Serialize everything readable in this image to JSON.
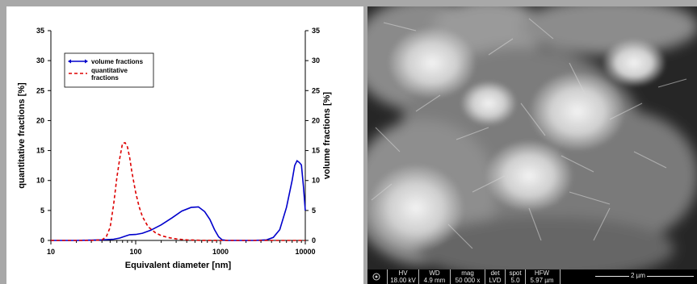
{
  "chart_data": {
    "type": "line",
    "xlabel": "Equivalent diameter [nm]",
    "ylabel_left": "quantitative fractions [%]",
    "ylabel_right": "volume fractions [%]",
    "x_scale": "log",
    "xlim": [
      10,
      10000
    ],
    "ylim": [
      0,
      35
    ],
    "y2lim": [
      0,
      35
    ],
    "x_ticks": [
      "10",
      "100",
      "1000",
      "10000"
    ],
    "y_ticks": [
      "0",
      "5",
      "10",
      "15",
      "20",
      "25",
      "30",
      "35"
    ],
    "y2_ticks": [
      "0",
      "5",
      "10",
      "15",
      "20",
      "25",
      "30",
      "35"
    ],
    "grid": false,
    "legend": "top-left",
    "series": [
      {
        "name": "volume fractions",
        "color": "#0000cc",
        "style": "solid",
        "axis": "right",
        "x": [
          10,
          20,
          40,
          55,
          65,
          75,
          85,
          100,
          120,
          150,
          200,
          270,
          350,
          450,
          550,
          650,
          750,
          850,
          950,
          1050,
          1200,
          1500,
          2500,
          3500,
          4200,
          5000,
          6000,
          7000,
          7500,
          8000,
          8500,
          9000,
          9500,
          10000
        ],
        "y": [
          0,
          0,
          0.1,
          0.2,
          0.4,
          0.7,
          0.95,
          1.0,
          1.2,
          1.7,
          2.6,
          3.8,
          4.9,
          5.5,
          5.6,
          4.8,
          3.5,
          1.8,
          0.6,
          0.1,
          0,
          0,
          0,
          0.1,
          0.5,
          1.8,
          5.5,
          10.0,
          12.5,
          13.3,
          13.0,
          12.6,
          9.0,
          5.0
        ]
      },
      {
        "name": "quantitative fractions",
        "color": "#dd0000",
        "style": "dashed",
        "axis": "left",
        "x": [
          10,
          30,
          40,
          45,
          50,
          55,
          60,
          65,
          70,
          75,
          80,
          85,
          90,
          100,
          110,
          120,
          140,
          170,
          200,
          250,
          300,
          400,
          500,
          600,
          800,
          1000,
          2000,
          5000,
          10000
        ],
        "y": [
          0,
          0,
          0.1,
          0.6,
          2.2,
          6.0,
          10.5,
          13.8,
          16.2,
          16.3,
          15.6,
          13.8,
          11.5,
          8.0,
          5.6,
          4.0,
          2.3,
          1.3,
          0.8,
          0.45,
          0.25,
          0.1,
          0.05,
          0.02,
          0.01,
          0,
          0,
          0,
          0
        ]
      }
    ]
  },
  "sem": {
    "databar": {
      "hv": {
        "label": "HV",
        "value": "18.00 kV"
      },
      "wd": {
        "label": "WD",
        "value": "4.9 mm"
      },
      "mag": {
        "label": "mag",
        "value": "50 000 x"
      },
      "det": {
        "label": "det",
        "value": "LVD"
      },
      "spot": {
        "label": "spot",
        "value": "5.0"
      },
      "hfw": {
        "label": "HFW",
        "value": "5.97 µm"
      },
      "scale": "2 µm"
    }
  }
}
